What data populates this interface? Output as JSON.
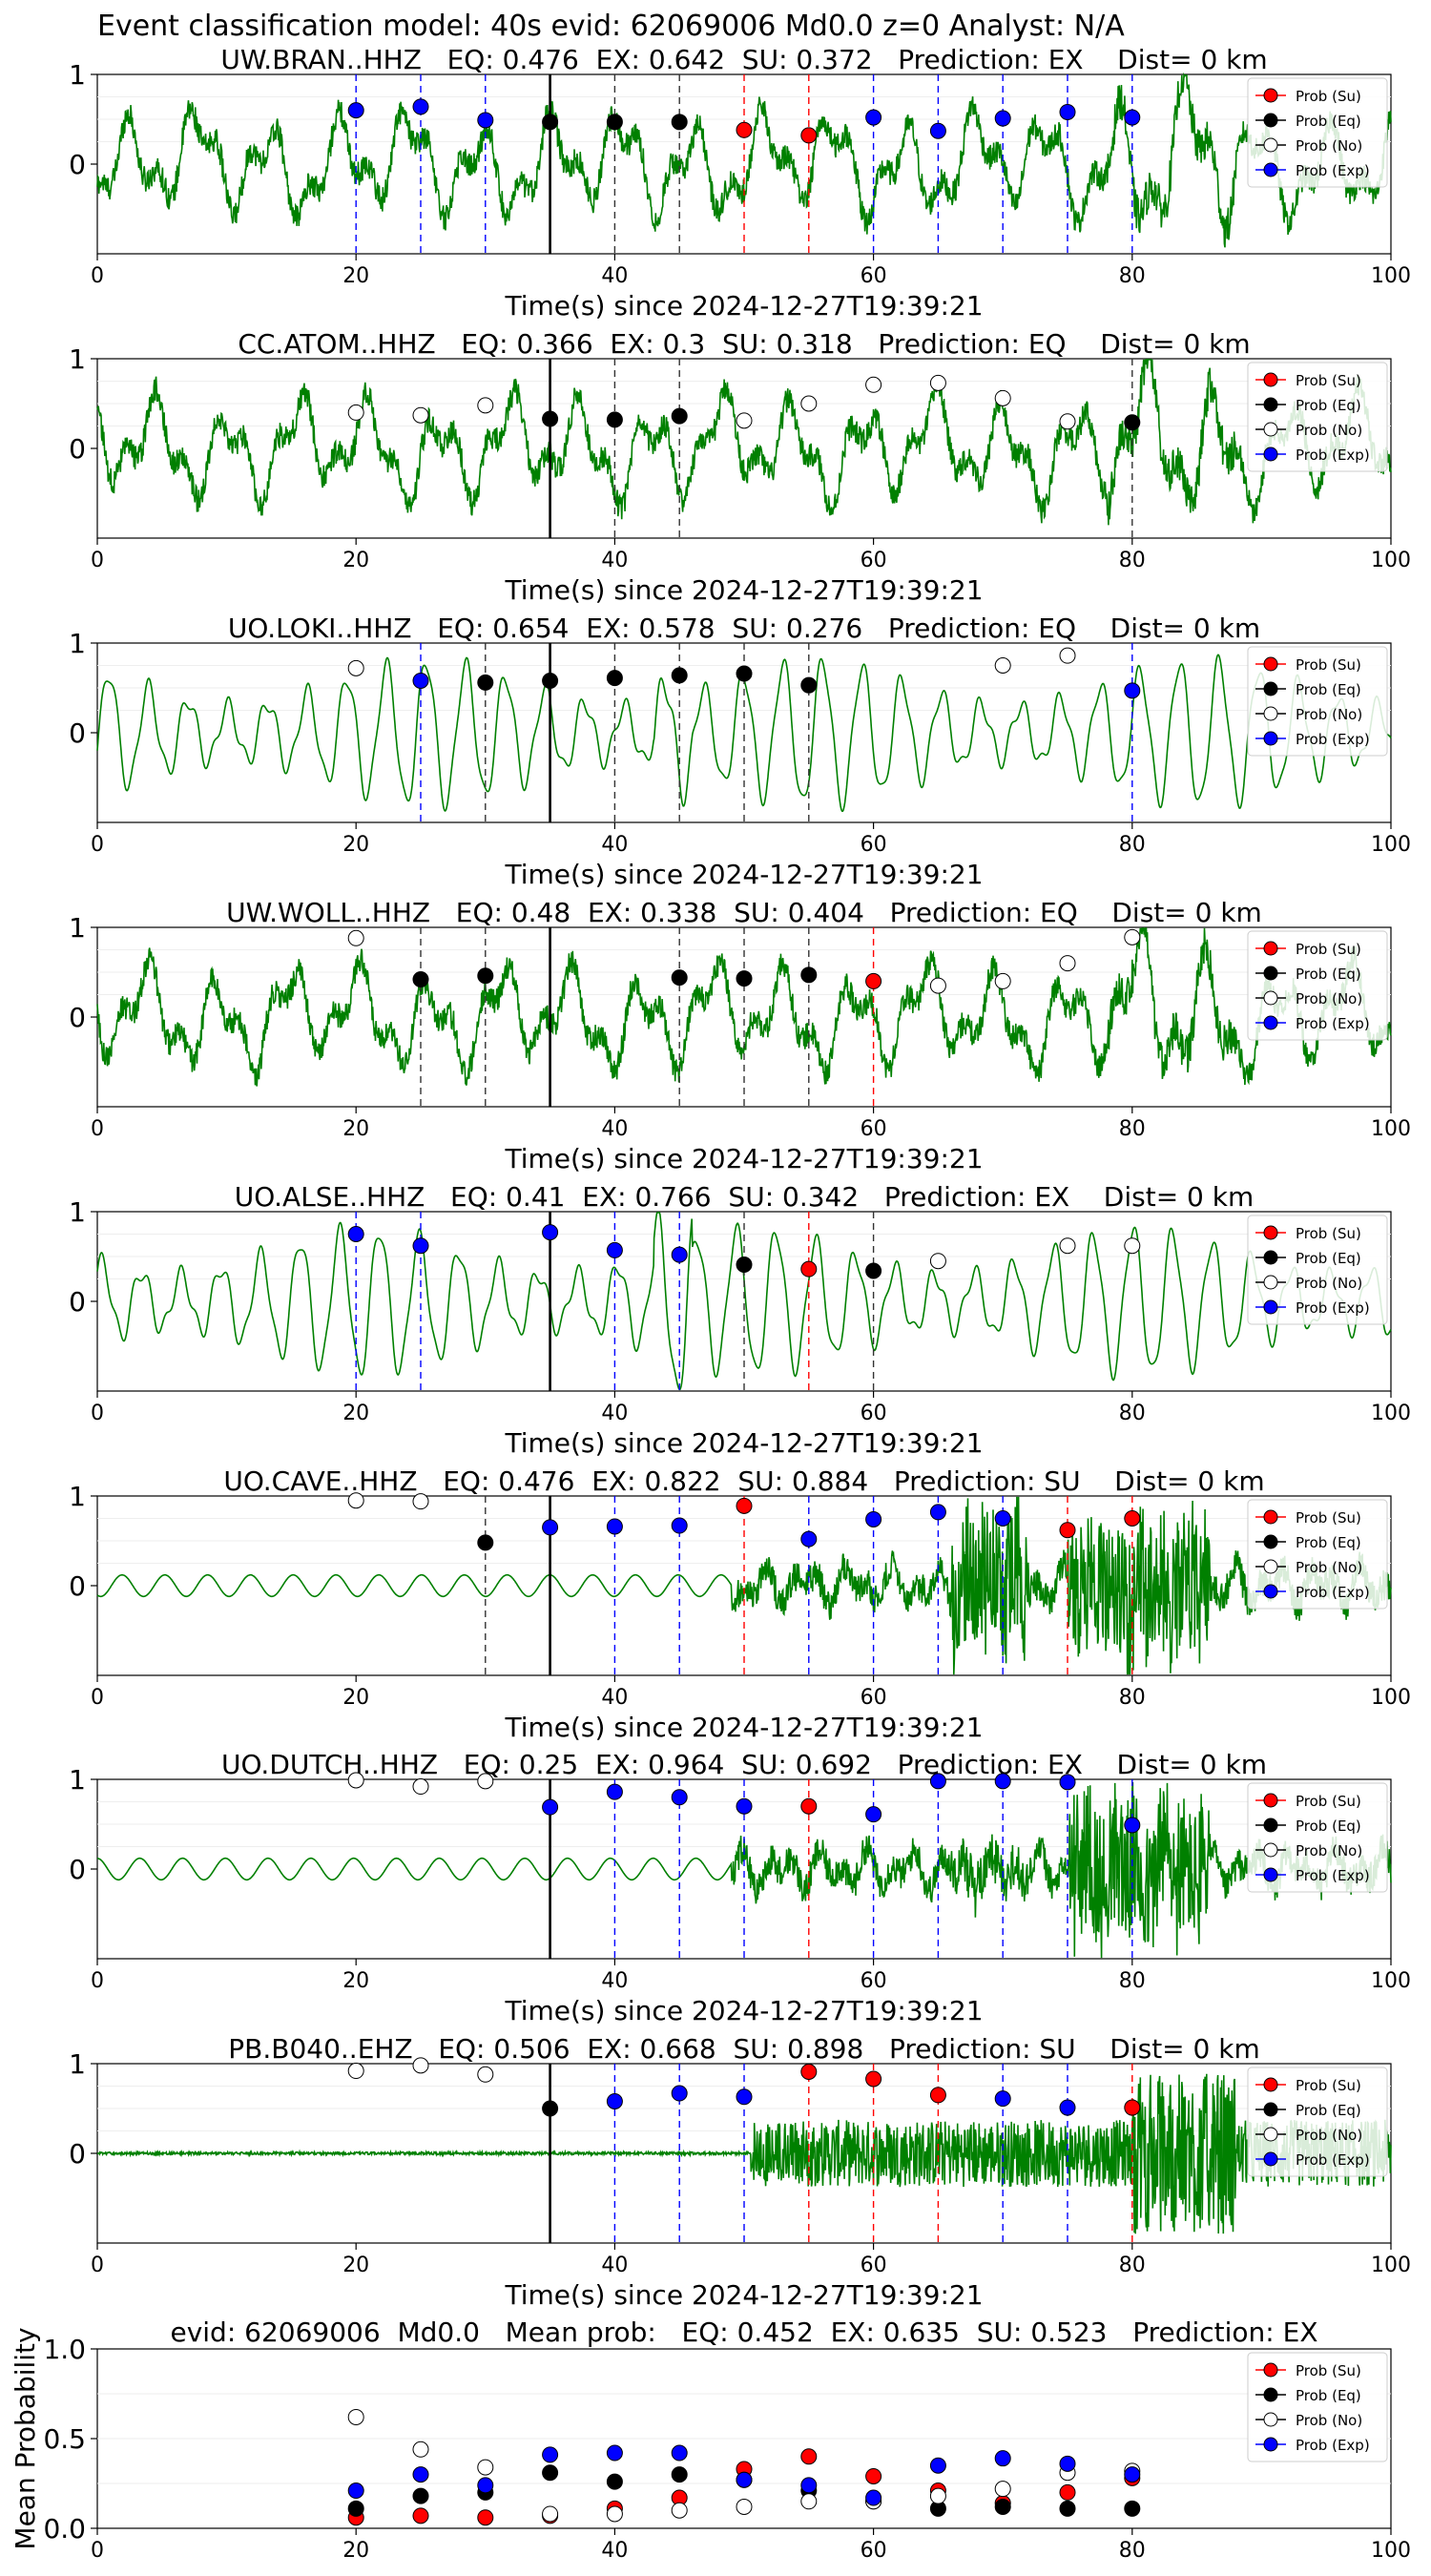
{
  "figure": {
    "suptitle": "Event classification model: 40s evid: 62069006 Md0.0 z=0 Analyst: N/A",
    "colors": {
      "waveform": "#008000",
      "su": "#ff0000",
      "eq": "#000000",
      "no": "#ffffff",
      "exp": "#0000ff",
      "origin_line": "#000000",
      "eq_line": "#333333",
      "ex_line": "#0000ff",
      "su_line": "#ff0000"
    },
    "legend_labels": [
      "Prob (Su)",
      "Prob (Eq)",
      "Prob (No)",
      "Prob (Exp)"
    ]
  },
  "chart_data": [
    {
      "type": "line",
      "title": "UW.BRAN..HHZ   EQ: 0.476  EX: 0.642  SU: 0.372   Prediction: EX    Dist= 0 km",
      "xlabel": "Time(s) since 2024-12-27T19:39:21",
      "xlim": [
        0,
        100
      ],
      "xticks": [
        0,
        20,
        40,
        60,
        80,
        100
      ],
      "yticks": [
        0,
        1
      ],
      "ylim": [
        -1,
        1
      ],
      "legend_position": "upper right",
      "waveform": "broadband noisy",
      "origin_time": 35,
      "points": [
        {
          "t": 20,
          "p": 0.6,
          "c": "exp"
        },
        {
          "t": 25,
          "p": 0.64,
          "c": "exp"
        },
        {
          "t": 30,
          "p": 0.49,
          "c": "exp"
        },
        {
          "t": 35,
          "p": 0.47,
          "c": "eq"
        },
        {
          "t": 40,
          "p": 0.47,
          "c": "eq"
        },
        {
          "t": 45,
          "p": 0.47,
          "c": "eq"
        },
        {
          "t": 50,
          "p": 0.38,
          "c": "su"
        },
        {
          "t": 55,
          "p": 0.32,
          "c": "su"
        },
        {
          "t": 60,
          "p": 0.52,
          "c": "exp"
        },
        {
          "t": 65,
          "p": 0.37,
          "c": "exp"
        },
        {
          "t": 70,
          "p": 0.51,
          "c": "exp"
        },
        {
          "t": 75,
          "p": 0.58,
          "c": "exp"
        },
        {
          "t": 80,
          "p": 0.52,
          "c": "exp"
        }
      ]
    },
    {
      "type": "line",
      "title": "CC.ATOM..HHZ   EQ: 0.366  EX: 0.3  SU: 0.318   Prediction: EQ    Dist= 0 km",
      "xlabel": "Time(s) since 2024-12-27T19:39:21",
      "xlim": [
        0,
        100
      ],
      "xticks": [
        0,
        20,
        40,
        60,
        80,
        100
      ],
      "yticks": [
        0,
        1
      ],
      "ylim": [
        -1,
        1
      ],
      "legend_position": "upper right",
      "waveform": "broadband noisy",
      "origin_time": 35,
      "points": [
        {
          "t": 20,
          "p": 0.4,
          "c": "no"
        },
        {
          "t": 25,
          "p": 0.37,
          "c": "no"
        },
        {
          "t": 30,
          "p": 0.48,
          "c": "no"
        },
        {
          "t": 35,
          "p": 0.33,
          "c": "eq"
        },
        {
          "t": 40,
          "p": 0.32,
          "c": "eq"
        },
        {
          "t": 45,
          "p": 0.36,
          "c": "eq"
        },
        {
          "t": 50,
          "p": 0.31,
          "c": "no"
        },
        {
          "t": 55,
          "p": 0.5,
          "c": "no"
        },
        {
          "t": 60,
          "p": 0.71,
          "c": "no"
        },
        {
          "t": 65,
          "p": 0.73,
          "c": "no"
        },
        {
          "t": 70,
          "p": 0.56,
          "c": "no"
        },
        {
          "t": 75,
          "p": 0.3,
          "c": "no"
        },
        {
          "t": 80,
          "p": 0.29,
          "c": "eq"
        }
      ]
    },
    {
      "type": "line",
      "title": "UO.LOKI..HHZ   EQ: 0.654  EX: 0.578  SU: 0.276   Prediction: EQ    Dist= 0 km",
      "xlabel": "Time(s) since 2024-12-27T19:39:21",
      "xlim": [
        0,
        100
      ],
      "xticks": [
        0,
        20,
        40,
        60,
        80,
        100
      ],
      "yticks": [
        0,
        1
      ],
      "ylim": [
        -1,
        1
      ],
      "legend_position": "upper right",
      "waveform": "smooth oscillation",
      "origin_time": 35,
      "points": [
        {
          "t": 20,
          "p": 0.72,
          "c": "no"
        },
        {
          "t": 25,
          "p": 0.58,
          "c": "exp"
        },
        {
          "t": 30,
          "p": 0.56,
          "c": "eq"
        },
        {
          "t": 35,
          "p": 0.58,
          "c": "eq"
        },
        {
          "t": 40,
          "p": 0.61,
          "c": "eq"
        },
        {
          "t": 45,
          "p": 0.64,
          "c": "eq"
        },
        {
          "t": 50,
          "p": 0.66,
          "c": "eq"
        },
        {
          "t": 55,
          "p": 0.53,
          "c": "eq"
        },
        {
          "t": 70,
          "p": 0.75,
          "c": "no"
        },
        {
          "t": 75,
          "p": 0.86,
          "c": "no"
        },
        {
          "t": 80,
          "p": 0.47,
          "c": "exp"
        }
      ]
    },
    {
      "type": "line",
      "title": "UW.WOLL..HHZ   EQ: 0.48  EX: 0.338  SU: 0.404   Prediction: EQ    Dist= 0 km",
      "xlabel": "Time(s) since 2024-12-27T19:39:21",
      "xlim": [
        0,
        100
      ],
      "xticks": [
        0,
        20,
        40,
        60,
        80,
        100
      ],
      "yticks": [
        0,
        1
      ],
      "ylim": [
        -1,
        1
      ],
      "legend_position": "upper right",
      "waveform": "broadband noisy",
      "origin_time": 35,
      "points": [
        {
          "t": 20,
          "p": 0.88,
          "c": "no"
        },
        {
          "t": 25,
          "p": 0.42,
          "c": "eq"
        },
        {
          "t": 30,
          "p": 0.46,
          "c": "eq"
        },
        {
          "t": 45,
          "p": 0.44,
          "c": "eq"
        },
        {
          "t": 50,
          "p": 0.43,
          "c": "eq"
        },
        {
          "t": 55,
          "p": 0.47,
          "c": "eq"
        },
        {
          "t": 60,
          "p": 0.4,
          "c": "su"
        },
        {
          "t": 65,
          "p": 0.35,
          "c": "no"
        },
        {
          "t": 70,
          "p": 0.4,
          "c": "no"
        },
        {
          "t": 75,
          "p": 0.6,
          "c": "no"
        },
        {
          "t": 80,
          "p": 0.89,
          "c": "no"
        }
      ]
    },
    {
      "type": "line",
      "title": "UO.ALSE..HHZ   EQ: 0.41  EX: 0.766  SU: 0.342   Prediction: EX    Dist= 0 km",
      "xlabel": "Time(s) since 2024-12-27T19:39:21",
      "xlim": [
        0,
        100
      ],
      "xticks": [
        0,
        20,
        40,
        60,
        80,
        100
      ],
      "yticks": [
        0,
        1
      ],
      "ylim": [
        -1,
        1
      ],
      "legend_position": "upper right",
      "waveform": "smooth oscillation",
      "origin_time": 35,
      "points": [
        {
          "t": 20,
          "p": 0.75,
          "c": "exp"
        },
        {
          "t": 25,
          "p": 0.62,
          "c": "exp"
        },
        {
          "t": 35,
          "p": 0.77,
          "c": "exp"
        },
        {
          "t": 40,
          "p": 0.57,
          "c": "exp"
        },
        {
          "t": 45,
          "p": 0.52,
          "c": "exp"
        },
        {
          "t": 50,
          "p": 0.41,
          "c": "eq"
        },
        {
          "t": 55,
          "p": 0.36,
          "c": "su"
        },
        {
          "t": 60,
          "p": 0.34,
          "c": "eq"
        },
        {
          "t": 65,
          "p": 0.45,
          "c": "no"
        },
        {
          "t": 75,
          "p": 0.62,
          "c": "no"
        },
        {
          "t": 80,
          "p": 0.62,
          "c": "no"
        }
      ]
    },
    {
      "type": "line",
      "title": "UO.CAVE..HHZ   EQ: 0.476  EX: 0.822  SU: 0.884   Prediction: SU    Dist= 0 km",
      "xlabel": "Time(s) since 2024-12-27T19:39:21",
      "xlim": [
        0,
        100
      ],
      "xticks": [
        0,
        20,
        40,
        60,
        80,
        100
      ],
      "yticks": [
        0,
        1
      ],
      "ylim": [
        -1,
        1
      ],
      "legend_position": "upper right",
      "waveform": "quiet then burst",
      "origin_time": 35,
      "points": [
        {
          "t": 20,
          "p": 0.95,
          "c": "no"
        },
        {
          "t": 25,
          "p": 0.94,
          "c": "no"
        },
        {
          "t": 30,
          "p": 0.48,
          "c": "eq"
        },
        {
          "t": 35,
          "p": 0.65,
          "c": "exp"
        },
        {
          "t": 40,
          "p": 0.66,
          "c": "exp"
        },
        {
          "t": 45,
          "p": 0.67,
          "c": "exp"
        },
        {
          "t": 50,
          "p": 0.89,
          "c": "su"
        },
        {
          "t": 55,
          "p": 0.52,
          "c": "exp"
        },
        {
          "t": 60,
          "p": 0.74,
          "c": "exp"
        },
        {
          "t": 65,
          "p": 0.82,
          "c": "exp"
        },
        {
          "t": 70,
          "p": 0.75,
          "c": "exp"
        },
        {
          "t": 75,
          "p": 0.62,
          "c": "su"
        },
        {
          "t": 80,
          "p": 0.75,
          "c": "su"
        }
      ]
    },
    {
      "type": "line",
      "title": "UO.DUTCH..HHZ   EQ: 0.25  EX: 0.964  SU: 0.692   Prediction: EX    Dist= 0 km",
      "xlabel": "Time(s) since 2024-12-27T19:39:21",
      "xlim": [
        0,
        100
      ],
      "xticks": [
        0,
        20,
        40,
        60,
        80,
        100
      ],
      "yticks": [
        0,
        1
      ],
      "ylim": [
        -1,
        1
      ],
      "legend_position": "upper right",
      "waveform": "quiet then burst",
      "origin_time": 35,
      "points": [
        {
          "t": 20,
          "p": 0.99,
          "c": "no"
        },
        {
          "t": 25,
          "p": 0.92,
          "c": "no"
        },
        {
          "t": 30,
          "p": 0.98,
          "c": "no"
        },
        {
          "t": 35,
          "p": 0.69,
          "c": "exp"
        },
        {
          "t": 40,
          "p": 0.86,
          "c": "exp"
        },
        {
          "t": 45,
          "p": 0.8,
          "c": "exp"
        },
        {
          "t": 50,
          "p": 0.7,
          "c": "exp"
        },
        {
          "t": 55,
          "p": 0.7,
          "c": "su"
        },
        {
          "t": 60,
          "p": 0.61,
          "c": "exp"
        },
        {
          "t": 65,
          "p": 0.98,
          "c": "exp"
        },
        {
          "t": 70,
          "p": 0.98,
          "c": "exp"
        },
        {
          "t": 75,
          "p": 0.97,
          "c": "exp"
        },
        {
          "t": 80,
          "p": 0.49,
          "c": "exp"
        }
      ]
    },
    {
      "type": "line",
      "title": "PB.B040..EHZ   EQ: 0.506  EX: 0.668  SU: 0.898   Prediction: SU    Dist= 0 km",
      "xlabel": "Time(s) since 2024-12-27T19:39:21",
      "xlim": [
        0,
        100
      ],
      "xticks": [
        0,
        20,
        40,
        60,
        80,
        100
      ],
      "yticks": [
        0,
        1
      ],
      "ylim": [
        -1,
        1
      ],
      "legend_position": "upper right",
      "waveform": "flat then burst",
      "origin_time": 35,
      "points": [
        {
          "t": 20,
          "p": 0.92,
          "c": "no"
        },
        {
          "t": 25,
          "p": 0.98,
          "c": "no"
        },
        {
          "t": 30,
          "p": 0.88,
          "c": "no"
        },
        {
          "t": 35,
          "p": 0.5,
          "c": "eq"
        },
        {
          "t": 40,
          "p": 0.58,
          "c": "exp"
        },
        {
          "t": 45,
          "p": 0.67,
          "c": "exp"
        },
        {
          "t": 50,
          "p": 0.63,
          "c": "exp"
        },
        {
          "t": 55,
          "p": 0.91,
          "c": "su"
        },
        {
          "t": 60,
          "p": 0.83,
          "c": "su"
        },
        {
          "t": 65,
          "p": 0.65,
          "c": "su"
        },
        {
          "t": 70,
          "p": 0.61,
          "c": "exp"
        },
        {
          "t": 75,
          "p": 0.51,
          "c": "exp"
        },
        {
          "t": 80,
          "p": 0.51,
          "c": "su"
        }
      ]
    },
    {
      "type": "scatter",
      "title": "evid: 62069006  Md0.0   Mean prob:   EQ: 0.452  EX: 0.635  SU: 0.523   Prediction: EX",
      "ylabel": "Mean Probability",
      "xlim": [
        0,
        100
      ],
      "xticks": [
        0,
        20,
        40,
        60,
        80,
        100
      ],
      "ylim": [
        0,
        1
      ],
      "yticks": [
        0.0,
        0.5,
        1.0
      ],
      "legend_position": "upper right",
      "x": [
        20,
        25,
        30,
        35,
        40,
        45,
        50,
        55,
        60,
        65,
        70,
        75,
        80
      ],
      "series": [
        {
          "name": "Prob (Su)",
          "c": "su",
          "values": [
            0.06,
            0.07,
            0.06,
            0.07,
            0.11,
            0.17,
            0.33,
            0.4,
            0.29,
            0.21,
            0.14,
            0.2,
            0.28
          ]
        },
        {
          "name": "Prob (Eq)",
          "c": "eq",
          "values": [
            0.11,
            0.18,
            0.2,
            0.31,
            0.26,
            0.3,
            0.27,
            0.21,
            0.15,
            0.11,
            0.12,
            0.11,
            0.11
          ]
        },
        {
          "name": "Prob (No)",
          "c": "no",
          "values": [
            0.62,
            0.44,
            0.34,
            0.08,
            0.08,
            0.1,
            0.12,
            0.15,
            0.15,
            0.18,
            0.22,
            0.31,
            0.32
          ]
        },
        {
          "name": "Prob (Exp)",
          "c": "exp",
          "values": [
            0.21,
            0.3,
            0.24,
            0.41,
            0.42,
            0.42,
            0.27,
            0.24,
            0.17,
            0.35,
            0.39,
            0.36,
            0.3
          ]
        }
      ]
    }
  ]
}
